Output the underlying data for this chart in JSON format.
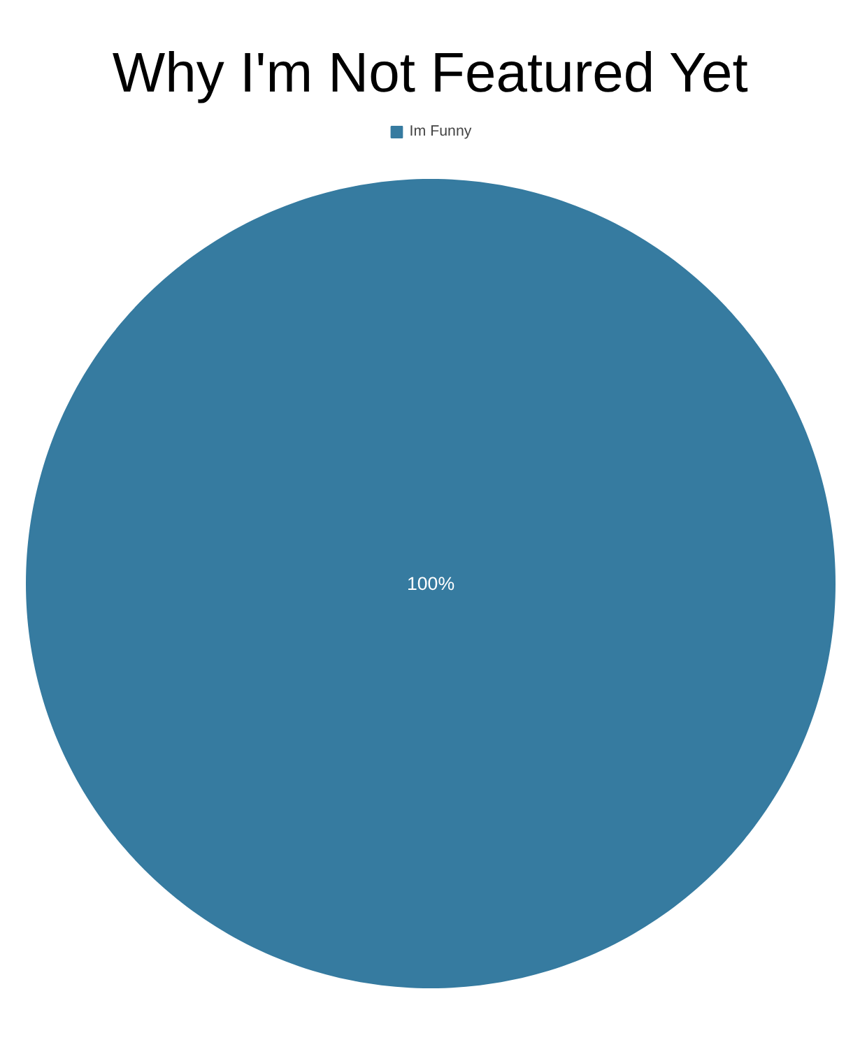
{
  "chart_data": {
    "type": "pie",
    "title": "Why I'm Not Featured Yet",
    "categories": [
      "Im Funny"
    ],
    "values": [
      100
    ],
    "colors": [
      "#367ba0"
    ],
    "value_labels": [
      "100%"
    ],
    "legend": "top"
  }
}
